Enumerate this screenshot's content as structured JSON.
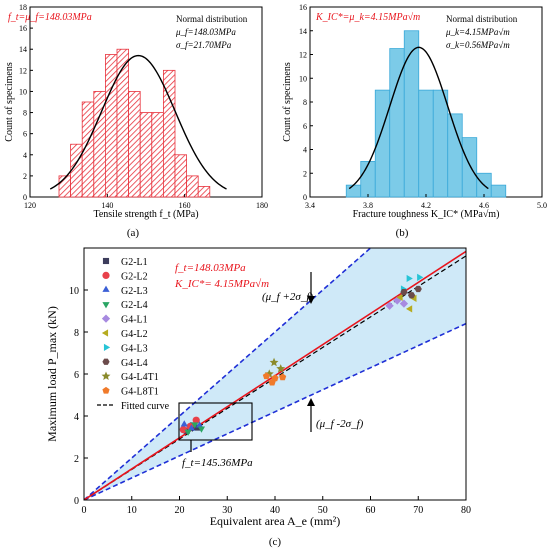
{
  "chart_data": [
    {
      "id": "a",
      "type": "bar",
      "panel_label": "(a)",
      "xlabel": "Tensile strength f_t (MPa)",
      "ylabel": "Count of specimens",
      "xlim": [
        120,
        180
      ],
      "ylim": [
        0,
        18
      ],
      "xticks": [
        120,
        140,
        160,
        180
      ],
      "yticks": [
        0,
        2,
        4,
        6,
        8,
        10,
        12,
        14,
        16,
        18
      ],
      "bin_width": 3,
      "bins": [
        {
          "x": 129,
          "count": 2
        },
        {
          "x": 132,
          "count": 5
        },
        {
          "x": 135,
          "count": 9
        },
        {
          "x": 138,
          "count": 10
        },
        {
          "x": 141,
          "count": 13.5
        },
        {
          "x": 144,
          "count": 14
        },
        {
          "x": 147,
          "count": 10
        },
        {
          "x": 150,
          "count": 8
        },
        {
          "x": 153,
          "count": 8
        },
        {
          "x": 156,
          "count": 12
        },
        {
          "x": 159,
          "count": 4
        },
        {
          "x": 162,
          "count": 2
        },
        {
          "x": 165,
          "count": 1
        }
      ],
      "fit": {
        "mu": 148.03,
        "sigma": 21.7,
        "peak": 13.4,
        "curve_sigma": 9.5
      },
      "annotation_red": {
        "text": "f_t=μ_f=148.03MPa"
      },
      "legend_lines": [
        {
          "text": "Normal distribution"
        },
        {
          "text": "μ_f=148.03MPa"
        },
        {
          "text": "σ_f=21.70MPa"
        }
      ],
      "colors": {
        "bar": "#e8323c",
        "fit": "#000000",
        "annotation": "#e8141c"
      }
    },
    {
      "id": "b",
      "type": "bar",
      "panel_label": "(b)",
      "xlabel": "Fracture toughness K_IC* (MPa√m)",
      "ylabel": "Count of specimens",
      "xlim": [
        3.4,
        5.0
      ],
      "ylim": [
        0,
        16
      ],
      "xticks": [
        3.4,
        3.8,
        4.2,
        4.6,
        5.0
      ],
      "xtick_labels": [
        "3.4",
        "3.8",
        "4.2",
        "4.6",
        "5.0"
      ],
      "yticks": [
        0,
        2,
        4,
        6,
        8,
        10,
        12,
        14,
        16
      ],
      "bin_width": 0.1,
      "bins": [
        {
          "x": 3.7,
          "count": 1
        },
        {
          "x": 3.8,
          "count": 3
        },
        {
          "x": 3.9,
          "count": 9
        },
        {
          "x": 4.0,
          "count": 12.5
        },
        {
          "x": 4.1,
          "count": 14
        },
        {
          "x": 4.2,
          "count": 9
        },
        {
          "x": 4.3,
          "count": 9
        },
        {
          "x": 4.4,
          "count": 7
        },
        {
          "x": 4.5,
          "count": 5
        },
        {
          "x": 4.6,
          "count": 2
        },
        {
          "x": 4.7,
          "count": 1
        }
      ],
      "fit": {
        "mu": 4.15,
        "sigma": 0.56,
        "peak": 12.6,
        "curve_sigma": 0.2
      },
      "annotation_red": {
        "text": "K_IC*=μ_k=4.15MPa√m"
      },
      "legend_lines": [
        {
          "text": "Normal distribution"
        },
        {
          "text": "μ_k=4.15MPa√m"
        },
        {
          "text": "σ_k=0.56MPa√m"
        }
      ],
      "colors": {
        "bar": "#7ccbe8",
        "bar_stroke": "#38a8d8",
        "fit": "#000000",
        "annotation": "#e8141c"
      }
    },
    {
      "id": "c",
      "type": "scatter",
      "panel_label": "(c)",
      "xlabel": "Equivalent area A_e (mm²)",
      "ylabel": "Maximum load P_max (kN)",
      "xlim": [
        0,
        80
      ],
      "ylim": [
        0,
        12
      ],
      "xticks": [
        0,
        10,
        20,
        30,
        40,
        50,
        60,
        70,
        80
      ],
      "yticks": [
        0,
        2,
        4,
        6,
        8,
        10
      ],
      "series": [
        {
          "name": "G2-L1",
          "marker": "square",
          "color": "#3d3d5c",
          "points": [
            [
              21.5,
              3.3
            ],
            [
              22.8,
              3.55
            ],
            [
              23.8,
              3.45
            ]
          ]
        },
        {
          "name": "G2-L2",
          "marker": "circle",
          "color": "#e8414a",
          "points": [
            [
              22.2,
              3.5
            ],
            [
              23.5,
              3.8
            ],
            [
              20.8,
              3.35
            ]
          ]
        },
        {
          "name": "G2-L3",
          "marker": "triangle-up",
          "color": "#3b5fd6",
          "points": [
            [
              21.0,
              3.6
            ],
            [
              22.5,
              3.4
            ],
            [
              24.2,
              3.55
            ]
          ]
        },
        {
          "name": "G2-L4",
          "marker": "triangle-down",
          "color": "#2aa564",
          "points": [
            [
              21.8,
              3.25
            ],
            [
              23.2,
              3.6
            ],
            [
              24.6,
              3.4
            ]
          ]
        },
        {
          "name": "G4-L1",
          "marker": "diamond",
          "color": "#a78ae0",
          "points": [
            [
              64.0,
              9.25
            ],
            [
              65.6,
              9.5
            ],
            [
              67.0,
              9.35
            ]
          ]
        },
        {
          "name": "G4-L2",
          "marker": "triangle-left",
          "color": "#b6ab20",
          "points": [
            [
              66.3,
              9.65
            ],
            [
              68.3,
              9.1
            ],
            [
              69.2,
              9.6
            ]
          ]
        },
        {
          "name": "G4-L3",
          "marker": "triangle-right",
          "color": "#27c4d6",
          "points": [
            [
              68.0,
              10.55
            ],
            [
              70.2,
              10.6
            ],
            [
              66.8,
              10.05
            ]
          ]
        },
        {
          "name": "G4-L4",
          "marker": "hexagon",
          "color": "#6b4b4b",
          "points": [
            [
              67.0,
              9.9
            ],
            [
              68.6,
              9.75
            ],
            [
              70.0,
              10.05
            ]
          ]
        },
        {
          "name": "G4-L4T1",
          "marker": "star",
          "color": "#8a8a2a",
          "points": [
            [
              39.8,
              6.55
            ],
            [
              41.2,
              6.25
            ],
            [
              38.8,
              6.0
            ]
          ]
        },
        {
          "name": "G4-L8T1",
          "marker": "pentagon",
          "color": "#f07a2a",
          "points": [
            [
              38.2,
              5.9
            ],
            [
              40.0,
              5.8
            ],
            [
              41.6,
              5.85
            ],
            [
              39.4,
              5.6
            ]
          ]
        }
      ],
      "fitted_curve": {
        "name": "Fitted curve",
        "slope": 0.1453
      },
      "red_line": {
        "slope": 0.148
      },
      "bounds": {
        "upper_slope": 0.2,
        "lower_slope": 0.105
      },
      "annotations": [
        {
          "id": "ft",
          "text": "f_t=148.03MPa"
        },
        {
          "id": "kic",
          "text": "K_IC*= 4.15MPa√m"
        },
        {
          "id": "upper",
          "text": "(μ_f +2σ_f)"
        },
        {
          "id": "lower",
          "text": "(μ_f -2σ_f)"
        },
        {
          "id": "fit",
          "text": "f_t=145.36MPa"
        }
      ],
      "colors": {
        "red_line": "#e8141c",
        "bound": "#1f2fd6",
        "band": "#cfe9f8",
        "fitted": "#000000"
      }
    }
  ]
}
